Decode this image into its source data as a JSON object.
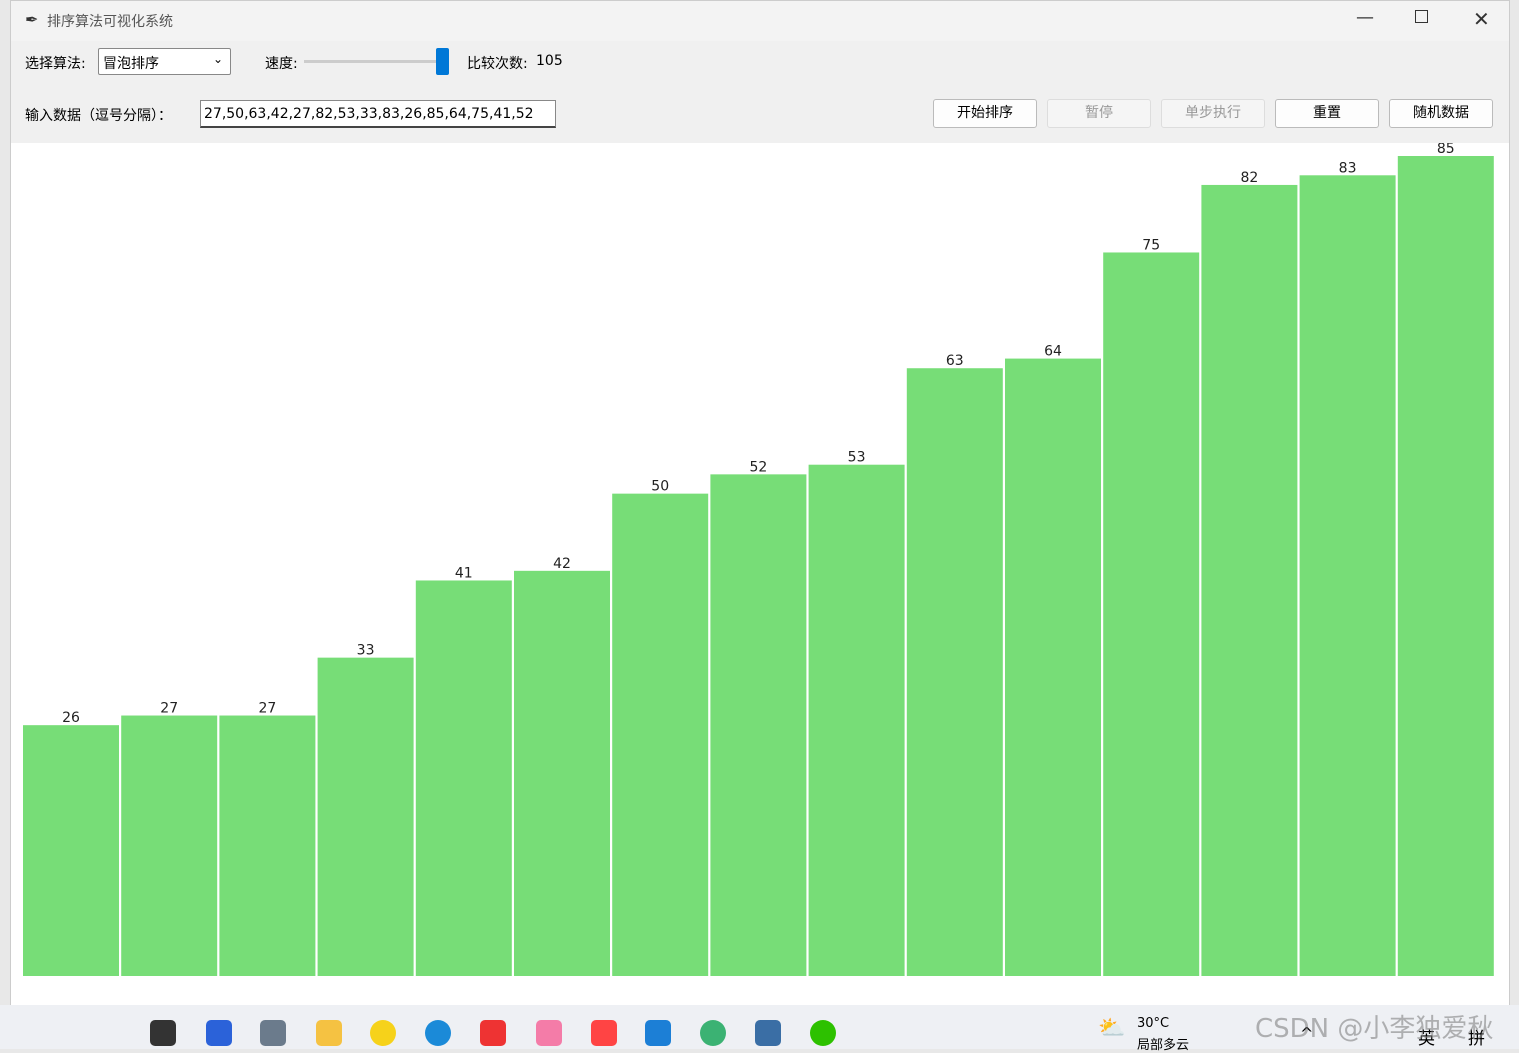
{
  "window": {
    "title": "排序算法可视化系统"
  },
  "toolbar": {
    "algorithm_label": "选择算法:",
    "algorithm": "冒泡排序",
    "speed_label": "速度:",
    "compare_label": "比较次数:",
    "compare_count": 105,
    "input_label": "输入数据（逗号分隔）：",
    "input_value": "27,50,63,42,27,82,53,33,83,26,85,64,75,41,52",
    "buttons": [
      {
        "label": "开始排序",
        "enabled": true
      },
      {
        "label": "暂停",
        "enabled": false
      },
      {
        "label": "单步执行",
        "enabled": false
      },
      {
        "label": "重置",
        "enabled": true
      },
      {
        "label": "随机数据",
        "enabled": true
      }
    ]
  },
  "chart_data": {
    "type": "bar",
    "values": [
      26,
      27,
      27,
      33,
      41,
      42,
      50,
      52,
      53,
      63,
      64,
      75,
      82,
      83,
      85
    ],
    "color": "#77dd77"
  },
  "taskbar": {
    "weather_temp": "30°C",
    "weather_desc": "局部多云",
    "ime": [
      "英",
      "拼"
    ]
  },
  "watermark": "CSDN @小李独爱秋"
}
